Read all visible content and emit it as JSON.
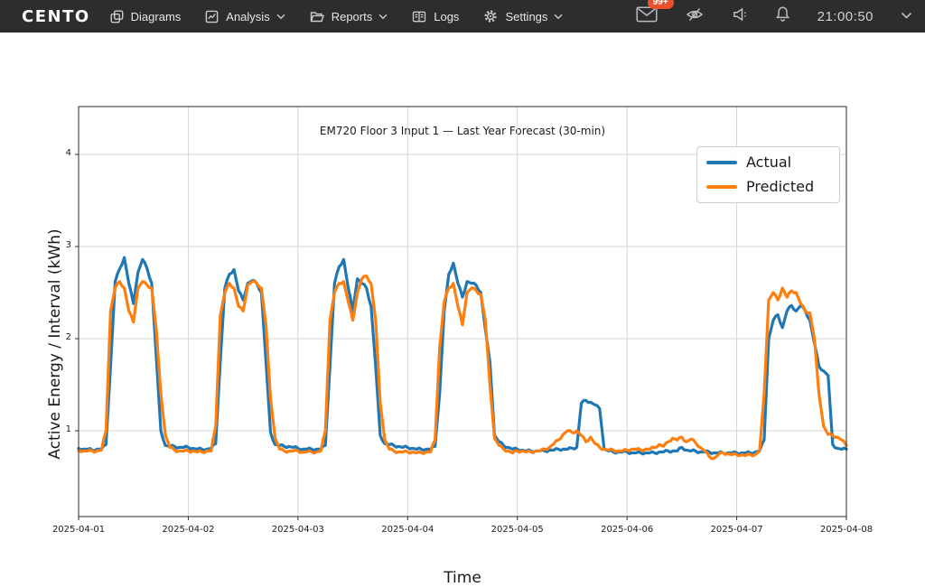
{
  "navbar": {
    "brand": "CENTO",
    "items": [
      {
        "label": "Diagrams",
        "icon": "diagram-icon",
        "has_dropdown": false
      },
      {
        "label": "Analysis",
        "icon": "analysis-icon",
        "has_dropdown": true
      },
      {
        "label": "Reports",
        "icon": "folder-icon",
        "has_dropdown": true
      },
      {
        "label": "Logs",
        "icon": "logs-icon",
        "has_dropdown": false
      },
      {
        "label": "Settings",
        "icon": "gear-icon",
        "has_dropdown": true
      }
    ],
    "tray": {
      "icons": [
        "mail-icon",
        "eye-off-icon",
        "speaker-icon",
        "bell-icon"
      ],
      "messages_badge": "99+",
      "clock": "21:00:50"
    },
    "colors": {
      "background": "#2d2d2d",
      "badge": "#e8512b",
      "text": "#e4e6e8"
    }
  },
  "chart_data": {
    "type": "line",
    "title": "EM720 Floor 3 Input 1 — Last Year Forecast (30-min)",
    "xlabel": "Time",
    "ylabel": "Active Energy / Interval (kWh)",
    "x_tick_labels": [
      "2025-04-01",
      "2025-04-02",
      "2025-04-03",
      "2025-04-04",
      "2025-04-05",
      "2025-04-06",
      "2025-04-07",
      "2025-04-08"
    ],
    "y_ticks": [
      1,
      2,
      3,
      4
    ],
    "ylim": [
      0.07,
      4.52
    ],
    "x_unit": "hours since 2025-04-01 00:00",
    "x_step_hours": 1,
    "x_range_hours": [
      0,
      168
    ],
    "grid": true,
    "legend_position": "upper right",
    "series": [
      {
        "name": "Actual",
        "color": "#1f77b4",
        "values": [
          0.81,
          0.8,
          0.8,
          0.79,
          0.8,
          0.8,
          0.85,
          1.7,
          2.62,
          2.76,
          2.88,
          2.6,
          2.38,
          2.72,
          2.86,
          2.76,
          2.6,
          1.8,
          1.0,
          0.84,
          0.83,
          0.83,
          0.82,
          0.82,
          0.82,
          0.81,
          0.8,
          0.8,
          0.8,
          0.81,
          0.86,
          1.75,
          2.55,
          2.7,
          2.75,
          2.52,
          2.42,
          2.6,
          2.63,
          2.6,
          2.5,
          1.75,
          0.98,
          0.85,
          0.84,
          0.83,
          0.83,
          0.82,
          0.81,
          0.8,
          0.8,
          0.8,
          0.8,
          0.8,
          0.84,
          1.7,
          2.6,
          2.78,
          2.86,
          2.55,
          2.3,
          2.65,
          2.6,
          2.55,
          2.35,
          1.7,
          0.95,
          0.86,
          0.85,
          0.84,
          0.83,
          0.82,
          0.82,
          0.81,
          0.8,
          0.8,
          0.8,
          0.8,
          0.83,
          1.4,
          2.3,
          2.7,
          2.82,
          2.6,
          2.45,
          2.62,
          2.6,
          2.58,
          2.5,
          2.1,
          1.75,
          0.95,
          0.88,
          0.84,
          0.82,
          0.8,
          0.8,
          0.79,
          0.78,
          0.78,
          0.78,
          0.78,
          0.78,
          0.79,
          0.79,
          0.8,
          0.8,
          0.8,
          0.81,
          0.82,
          1.3,
          1.33,
          1.31,
          1.28,
          1.24,
          0.8,
          0.78,
          0.77,
          0.77,
          0.77,
          0.77,
          0.76,
          0.76,
          0.76,
          0.76,
          0.76,
          0.76,
          0.77,
          0.77,
          0.78,
          0.78,
          0.78,
          0.82,
          0.79,
          0.78,
          0.78,
          0.77,
          0.77,
          0.77,
          0.76,
          0.76,
          0.76,
          0.76,
          0.76,
          0.76,
          0.76,
          0.76,
          0.76,
          0.77,
          0.78,
          0.9,
          2.0,
          2.2,
          2.26,
          2.12,
          2.3,
          2.36,
          2.3,
          2.36,
          2.3,
          2.2,
          1.95,
          1.7,
          1.65,
          1.6,
          0.85,
          0.81,
          0.8,
          0.8
        ]
      },
      {
        "name": "Predicted",
        "color": "#ff7f0e",
        "values": [
          0.79,
          0.78,
          0.78,
          0.78,
          0.78,
          0.79,
          1.0,
          2.3,
          2.55,
          2.62,
          2.55,
          2.3,
          2.18,
          2.55,
          2.62,
          2.58,
          2.55,
          2.1,
          1.4,
          0.95,
          0.82,
          0.79,
          0.78,
          0.78,
          0.78,
          0.78,
          0.77,
          0.77,
          0.78,
          0.78,
          1.05,
          2.25,
          2.5,
          2.6,
          2.55,
          2.35,
          2.3,
          2.58,
          2.62,
          2.6,
          2.55,
          2.15,
          1.35,
          0.92,
          0.8,
          0.78,
          0.78,
          0.78,
          0.78,
          0.77,
          0.77,
          0.77,
          0.77,
          0.78,
          1.0,
          2.2,
          2.5,
          2.6,
          2.62,
          2.4,
          2.2,
          2.5,
          2.65,
          2.68,
          2.6,
          2.2,
          1.3,
          0.9,
          0.8,
          0.78,
          0.77,
          0.77,
          0.77,
          0.77,
          0.76,
          0.76,
          0.77,
          0.77,
          0.9,
          1.9,
          2.4,
          2.55,
          2.6,
          2.35,
          2.15,
          2.5,
          2.55,
          2.52,
          2.48,
          2.2,
          1.5,
          0.92,
          0.84,
          0.8,
          0.78,
          0.76,
          0.78,
          0.78,
          0.77,
          0.77,
          0.78,
          0.78,
          0.8,
          0.82,
          0.86,
          0.9,
          0.96,
          1.0,
          0.98,
          1.0,
          0.95,
          0.88,
          0.93,
          0.86,
          0.82,
          0.8,
          0.79,
          0.79,
          0.78,
          0.78,
          0.79,
          0.8,
          0.8,
          0.79,
          0.8,
          0.8,
          0.82,
          0.85,
          0.83,
          0.88,
          0.92,
          0.9,
          0.93,
          0.88,
          0.91,
          0.87,
          0.82,
          0.78,
          0.72,
          0.7,
          0.74,
          0.76,
          0.75,
          0.74,
          0.74,
          0.74,
          0.73,
          0.74,
          0.74,
          0.78,
          1.4,
          2.42,
          2.5,
          2.42,
          2.55,
          2.45,
          2.52,
          2.5,
          2.38,
          2.3,
          2.28,
          2.0,
          1.4,
          1.05,
          0.96,
          0.95,
          0.93,
          0.9,
          0.84
        ]
      }
    ],
    "style": {
      "grid_color": "#d6d6d6",
      "spine_color": "#2a2a2a",
      "line_width": 3.2
    }
  }
}
